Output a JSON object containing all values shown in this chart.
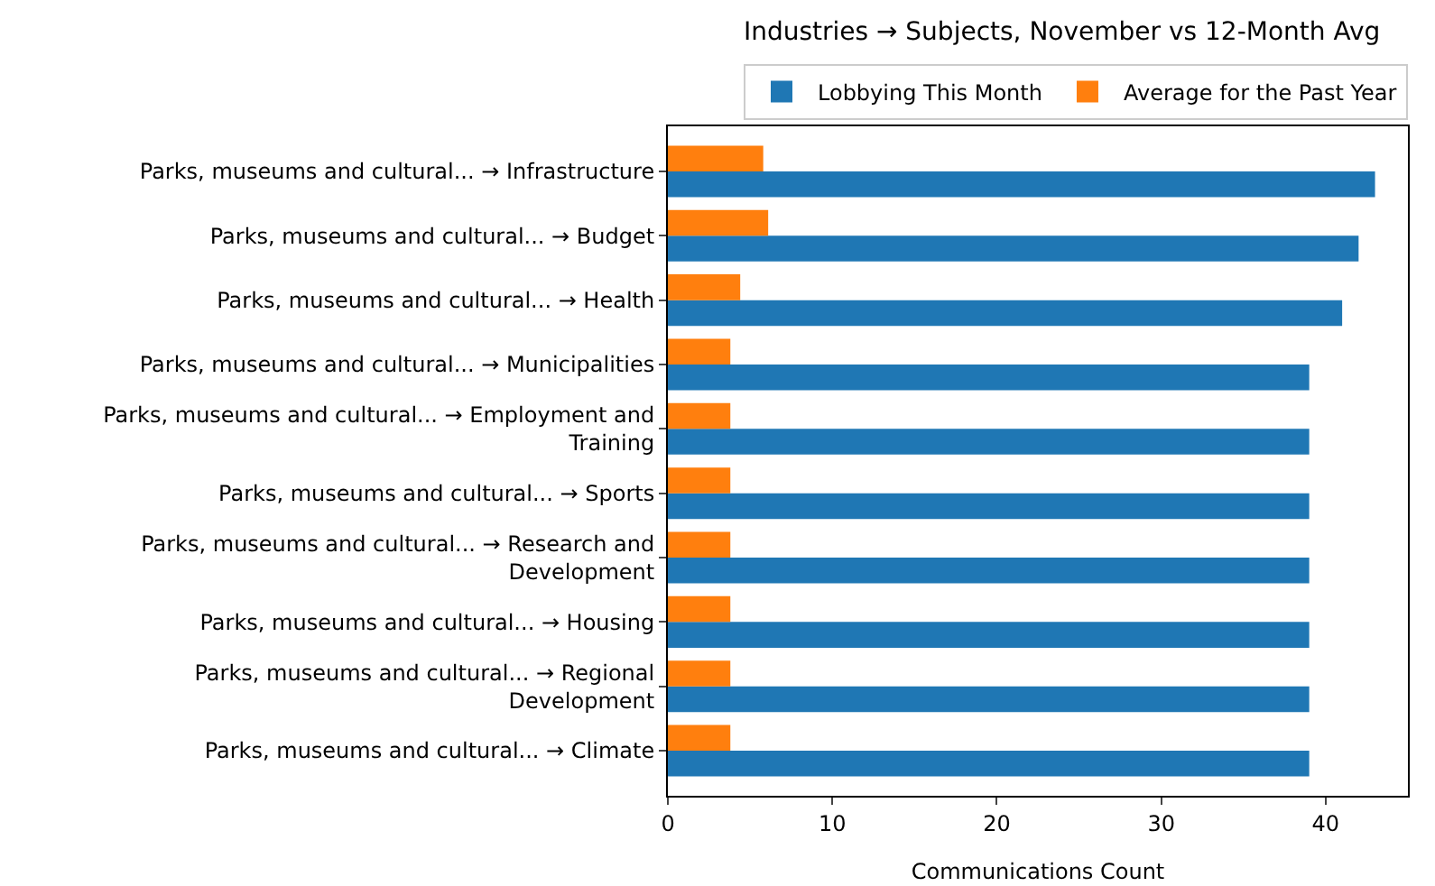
{
  "chart_data": {
    "type": "bar",
    "orientation": "horizontal",
    "title": "Industries → Subjects, November vs 12-Month Avg",
    "xlabel": "Communications Count",
    "categories": [
      "Parks, museums and cultural... → Infrastructure",
      "Parks, museums and cultural... → Budget",
      "Parks, museums and cultural... → Health",
      "Parks, museums and cultural... → Municipalities",
      "Parks, museums and cultural... → Employment and\nTraining",
      "Parks, museums and cultural... → Sports",
      "Parks, museums and cultural... → Research and\nDevelopment",
      "Parks, museums and cultural... → Housing",
      "Parks, museums and cultural... → Regional\nDevelopment",
      "Parks, museums and cultural... → Climate"
    ],
    "series": [
      {
        "name": "Lobbying This Month",
        "color": "#1f77b4",
        "values": [
          43,
          42,
          41,
          39,
          39,
          39,
          39,
          39,
          39,
          39
        ]
      },
      {
        "name": "Average for the Past Year",
        "color": "#ff7f0e",
        "values": [
          5.8,
          6.1,
          4.4,
          3.8,
          3.8,
          3.8,
          3.8,
          3.8,
          3.8,
          3.8
        ]
      }
    ],
    "xlim": [
      0,
      45
    ],
    "xticks": [
      0,
      10,
      20,
      30,
      40
    ],
    "grid": false,
    "legend": "top right"
  }
}
